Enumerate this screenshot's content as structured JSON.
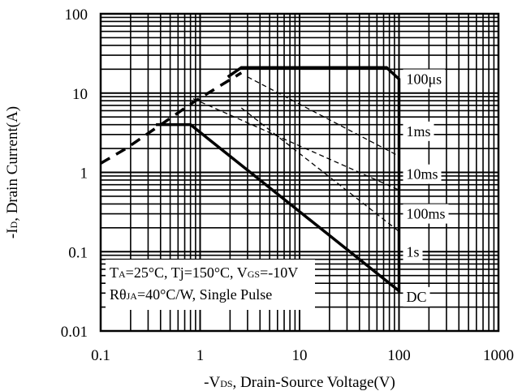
{
  "chart_data": {
    "type": "line",
    "title": "",
    "xlabel": {
      "prefix": "-V",
      "sub": "DS",
      "rest": ", Drain-Source Voltage(V)"
    },
    "ylabel": {
      "prefix": "-I",
      "sub": "D",
      "rest": ", Drain Current(A)"
    },
    "x_scale": "log",
    "y_scale": "log",
    "xlim": [
      0.1,
      1000
    ],
    "ylim": [
      0.01,
      100
    ],
    "grid": true,
    "x_ticks": [
      {
        "value": 0.1,
        "label": "0.1"
      },
      {
        "value": 1,
        "label": "1"
      },
      {
        "value": 10,
        "label": "10"
      },
      {
        "value": 100,
        "label": "100"
      },
      {
        "value": 1000,
        "label": "1000"
      }
    ],
    "y_ticks": [
      {
        "value": 100,
        "label": "100"
      },
      {
        "value": 10,
        "label": "10"
      },
      {
        "value": 1,
        "label": "1"
      },
      {
        "value": 0.1,
        "label": "0.1"
      },
      {
        "value": 0.01,
        "label": "0.01"
      }
    ],
    "series": [
      {
        "name": "",
        "style": "dashed-bold",
        "points": [
          [
            0.1,
            1.3
          ],
          [
            0.18,
            2.0
          ],
          [
            0.9,
            8.0
          ],
          [
            2.6,
            18.0
          ]
        ]
      },
      {
        "name": "100μs",
        "style": "solid-bold",
        "points": [
          [
            1.9,
            16.0
          ],
          [
            2.6,
            21.0
          ],
          [
            75,
            21.0
          ],
          [
            100,
            15.0
          ],
          [
            100,
            0.03
          ]
        ]
      },
      {
        "name": "1ms",
        "style": "dashed-thin",
        "points": [
          [
            3.0,
            16.0
          ],
          [
            100,
            1.6
          ]
        ]
      },
      {
        "name": "10ms",
        "style": "dashed-thin",
        "points": [
          [
            0.85,
            8.5
          ],
          [
            100,
            0.6
          ]
        ]
      },
      {
        "name": "100ms",
        "style": "dashed-thin",
        "points": [
          [
            2.6,
            6.5
          ],
          [
            100,
            0.18
          ]
        ]
      },
      {
        "name": "DC",
        "style": "solid-bold",
        "points": [
          [
            0.36,
            4.0
          ],
          [
            0.8,
            4.0
          ],
          [
            100,
            0.032
          ]
        ]
      }
    ],
    "curve_labels": [
      {
        "text": "100μs",
        "y": 15
      },
      {
        "text": "1ms",
        "y": 3.3
      },
      {
        "text": "10ms",
        "y": 0.95
      },
      {
        "text": "100ms",
        "y": 0.3
      },
      {
        "text": "1s",
        "y": 0.1
      },
      {
        "text": "DC",
        "y": 0.027
      }
    ],
    "annotations": [
      {
        "line": 1,
        "parts": [
          {
            "t": "T"
          },
          {
            "t": "A",
            "sub": true
          },
          {
            "t": "=25°C, Tj=150°C, V"
          },
          {
            "t": "GS",
            "sub": true
          },
          {
            "t": "=-10V"
          }
        ]
      },
      {
        "line": 2,
        "parts": [
          {
            "t": "Rθ"
          },
          {
            "t": "JA",
            "sub": true
          },
          {
            "t": "=40°C/W, Single Pulse"
          }
        ]
      }
    ]
  }
}
